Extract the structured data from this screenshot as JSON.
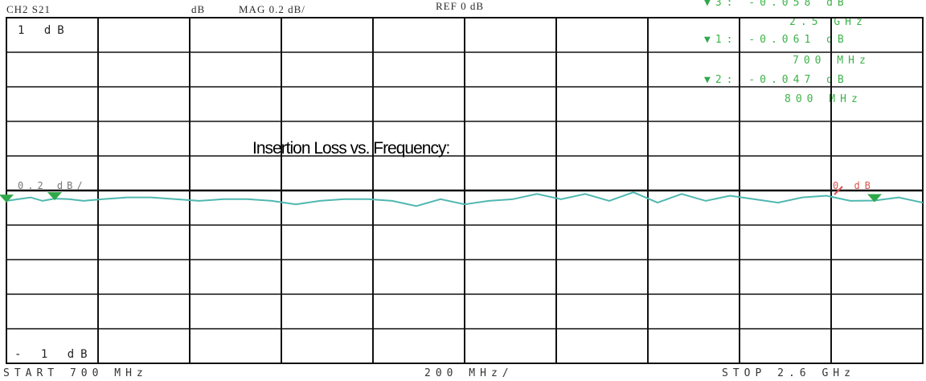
{
  "header": {
    "channel": "CH2  S21",
    "format": "dB",
    "scale": "MAG 0.2 dB/",
    "reference": "REF 0 dB"
  },
  "markers": [
    {
      "id": "3",
      "readout": "3: -0.058 dB",
      "freq": "2.5 GHz"
    },
    {
      "id": "1",
      "readout": "1: -0.061 dB",
      "freq": "700 MHz"
    },
    {
      "id": "2",
      "readout": "2: -0.047 dB",
      "freq": "800 MHz"
    }
  ],
  "footer": {
    "start": "START  700 MHz",
    "span": "200 MHz/",
    "stop": "STOP  2.6 GHz"
  },
  "grid_labels": {
    "top": "1  dB",
    "bottom": "- 1  dB",
    "scale": "0.2 dB/",
    "ref": "0 dB"
  },
  "overlay_title": "Insertion Loss vs. Frequency:",
  "colors": {
    "trace": "#4fb8b0",
    "marker": "#2fa84a",
    "marker_text": "#3cb34a",
    "grid": "#111111",
    "ref_marker": "#d9534f"
  },
  "chart_data": {
    "type": "line",
    "title": "Insertion Loss vs. Frequency:",
    "xlabel": "",
    "ylabel": "",
    "x_unit": "MHz",
    "xlim": [
      700,
      2600
    ],
    "ylim": [
      -1,
      1
    ],
    "reference_level": 0,
    "scale_per_div": 0.2,
    "grid": true,
    "series": [
      {
        "x": [
          700,
          725,
          750,
          775,
          800,
          830,
          860,
          900,
          950,
          1000,
          1050,
          1100,
          1150,
          1200,
          1250,
          1300,
          1350,
          1400,
          1450,
          1500,
          1550,
          1600,
          1650,
          1700,
          1750,
          1800,
          1850,
          1900,
          1950,
          2000,
          2050,
          2100,
          2150,
          2200,
          2250,
          2300,
          2350,
          2400,
          2450,
          2500,
          2550,
          2600
        ],
        "y": [
          -0.06,
          -0.05,
          -0.04,
          -0.06,
          -0.047,
          -0.05,
          -0.06,
          -0.05,
          -0.04,
          -0.04,
          -0.05,
          -0.06,
          -0.05,
          -0.05,
          -0.06,
          -0.08,
          -0.06,
          -0.05,
          -0.05,
          -0.06,
          -0.09,
          -0.05,
          -0.08,
          -0.06,
          -0.05,
          -0.02,
          -0.05,
          -0.02,
          -0.06,
          -0.01,
          -0.07,
          -0.02,
          -0.06,
          -0.03,
          -0.05,
          -0.07,
          -0.04,
          -0.03,
          -0.06,
          -0.058,
          -0.04,
          -0.07
        ]
      }
    ],
    "markers": [
      {
        "x": 700,
        "y": -0.061
      },
      {
        "x": 800,
        "y": -0.047
      },
      {
        "x": 2500,
        "y": -0.058
      }
    ]
  }
}
